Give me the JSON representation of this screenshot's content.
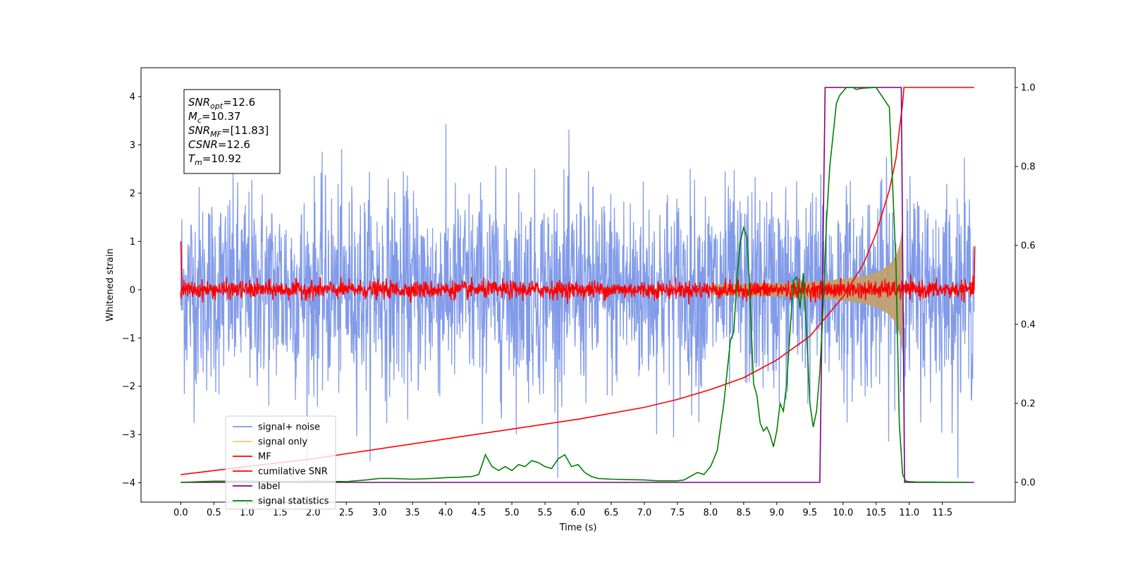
{
  "chart_data": {
    "type": "line",
    "xlabel": "Time (s)",
    "ylabel": "Whitened strain",
    "xlim": [
      -0.6,
      12.6
    ],
    "ylim_left": [
      -4.4,
      4.6
    ],
    "ylim_right": [
      -0.05,
      1.05
    ],
    "x_ticks": [
      "0.0",
      "0.5",
      "1.0",
      "1.5",
      "2.0",
      "2.5",
      "3.0",
      "3.5",
      "4.0",
      "4.5",
      "5.0",
      "5.5",
      "6.0",
      "6.5",
      "7.0",
      "7.5",
      "8.0",
      "8.5",
      "9.0",
      "9.5",
      "10.0",
      "10.5",
      "11.0",
      "11.5"
    ],
    "y_ticks_left": [
      "4",
      "3",
      "2",
      "1",
      "0",
      "−1",
      "−2",
      "−3",
      "−4"
    ],
    "y_ticks_right": [
      "1.0",
      "0.8",
      "0.6",
      "0.4",
      "0.2",
      "0.0"
    ],
    "legend_position": "lower-left",
    "stats_box": [
      {
        "base": "SNR",
        "sub": "opt",
        "value": "=12.6"
      },
      {
        "base": "M",
        "sub": "c",
        "value": "=10.37"
      },
      {
        "base": "SNR",
        "sub": "MF",
        "value": "=[11.83]"
      },
      {
        "base": "CSNR",
        "sub": "",
        "value": "=12.6"
      },
      {
        "base": "T",
        "sub": "m",
        "value": "=10.92"
      }
    ],
    "series": [
      {
        "name": "signal+ noise",
        "color": "#7b96e8",
        "axis": "left",
        "kind": "noise",
        "sigma": 1.0,
        "x_range": [
          0.0,
          11.98
        ]
      },
      {
        "name": "signal only",
        "color": "#f5c76a",
        "axis": "left",
        "kind": "chirp",
        "peak_amplitude": 1.6,
        "peak_time": 10.9
      },
      {
        "name": "MF",
        "color": "#ff0000",
        "axis": "left",
        "kind": "noise",
        "sigma": 0.09,
        "x_range": [
          0.0,
          11.98
        ]
      },
      {
        "name": "cumilative SNR",
        "color": "#ff0000",
        "axis": "right",
        "x": [
          0.0,
          0.02,
          1.0,
          2.0,
          3.0,
          4.0,
          5.0,
          6.0,
          7.0,
          7.5,
          8.0,
          8.5,
          9.0,
          9.5,
          10.0,
          10.3,
          10.5,
          10.7,
          10.8,
          10.9,
          10.92,
          11.98
        ],
        "values": [
          0.02,
          0.02,
          0.04,
          0.06,
          0.085,
          0.11,
          0.135,
          0.16,
          0.19,
          0.21,
          0.235,
          0.265,
          0.31,
          0.37,
          0.47,
          0.55,
          0.63,
          0.74,
          0.82,
          0.96,
          1.0,
          1.0
        ]
      },
      {
        "name": "label",
        "color": "#800080",
        "axis": "right",
        "x": [
          0.0,
          9.65,
          9.73,
          10.88,
          10.93,
          11.98
        ],
        "values": [
          0.0,
          0.0,
          1.0,
          1.0,
          0.0,
          0.0
        ]
      },
      {
        "name": "signal statistics",
        "color": "#008000",
        "axis": "right",
        "x": [
          0.0,
          0.5,
          1.0,
          1.5,
          2.0,
          2.5,
          2.8,
          3.0,
          3.2,
          3.5,
          3.8,
          4.0,
          4.2,
          4.4,
          4.5,
          4.6,
          4.7,
          4.8,
          4.9,
          5.0,
          5.1,
          5.2,
          5.3,
          5.4,
          5.5,
          5.6,
          5.7,
          5.8,
          5.9,
          6.0,
          6.1,
          6.2,
          6.3,
          6.5,
          7.0,
          7.2,
          7.5,
          7.6,
          7.8,
          7.9,
          8.0,
          8.1,
          8.2,
          8.3,
          8.35,
          8.4,
          8.45,
          8.5,
          8.55,
          8.6,
          8.65,
          8.7,
          8.75,
          8.8,
          8.85,
          8.9,
          8.95,
          9.0,
          9.05,
          9.1,
          9.15,
          9.2,
          9.25,
          9.3,
          9.35,
          9.4,
          9.45,
          9.5,
          9.55,
          9.6,
          9.65,
          9.7,
          9.75,
          9.8,
          9.85,
          9.9,
          9.95,
          10.0,
          10.05,
          10.1,
          10.15,
          10.2,
          10.3,
          10.5,
          10.7,
          10.8,
          10.85,
          10.9,
          10.95,
          11.0,
          11.1,
          11.9
        ],
        "values": [
          0.0,
          0.003,
          0.003,
          0.002,
          0.003,
          0.002,
          0.006,
          0.01,
          0.01,
          0.008,
          0.01,
          0.012,
          0.013,
          0.015,
          0.02,
          0.07,
          0.04,
          0.03,
          0.04,
          0.03,
          0.045,
          0.04,
          0.055,
          0.05,
          0.04,
          0.035,
          0.06,
          0.07,
          0.04,
          0.045,
          0.025,
          0.015,
          0.01,
          0.008,
          0.006,
          0.004,
          0.004,
          0.006,
          0.025,
          0.02,
          0.04,
          0.08,
          0.2,
          0.36,
          0.38,
          0.52,
          0.61,
          0.645,
          0.62,
          0.45,
          0.25,
          0.22,
          0.15,
          0.13,
          0.14,
          0.12,
          0.09,
          0.13,
          0.2,
          0.18,
          0.25,
          0.38,
          0.51,
          0.52,
          0.44,
          0.53,
          0.38,
          0.2,
          0.14,
          0.18,
          0.28,
          0.44,
          0.66,
          0.8,
          0.88,
          0.96,
          0.98,
          0.99,
          1.0,
          1.0,
          1.0,
          0.995,
          0.998,
          1.0,
          0.95,
          0.55,
          0.15,
          0.02,
          0.003,
          0.002,
          0.001,
          0.0
        ]
      }
    ]
  }
}
